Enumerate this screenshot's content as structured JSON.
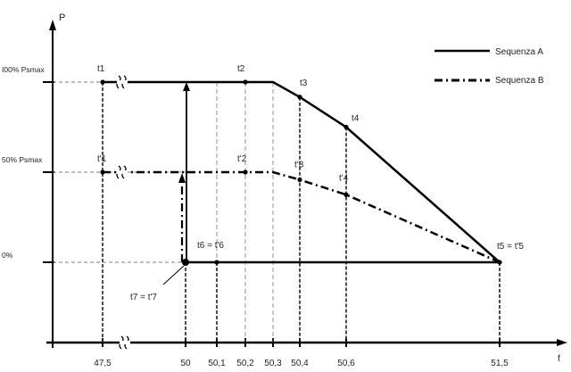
{
  "chart_data": {
    "type": "line",
    "xlabel": "f",
    "ylabel": "P",
    "x_ticks": [
      "47,5",
      "50",
      "50,1",
      "50,2",
      "50,3",
      "50,4",
      "50,6",
      "51,5"
    ],
    "x_values": [
      47.5,
      50,
      50.1,
      50.2,
      50.3,
      50.4,
      50.6,
      51.5
    ],
    "x_axis_break_between": [
      47.5,
      50
    ],
    "y_ticks": [
      {
        "label": "I00% Psmax",
        "value": 100
      },
      {
        "label": "50% Psmax",
        "value": 50
      },
      {
        "label": "0%",
        "value": 0
      }
    ],
    "legend_position": "top-right",
    "series": [
      {
        "name": "Sequenza A",
        "style": "solid",
        "points": [
          [
            47.5,
            100
          ],
          [
            50.2,
            100
          ],
          [
            50.3,
            100
          ],
          [
            50.4,
            91.7
          ],
          [
            50.6,
            75
          ],
          [
            51.5,
            0
          ],
          [
            50.1,
            0
          ],
          [
            50,
            0
          ]
        ]
      },
      {
        "name": "Sequenza B",
        "style": "dash-dot",
        "points": [
          [
            47.5,
            50
          ],
          [
            50.2,
            50
          ],
          [
            50.3,
            50
          ],
          [
            50.4,
            45.8
          ],
          [
            50.6,
            37.5
          ],
          [
            51.5,
            0
          ],
          [
            50.1,
            0
          ],
          [
            50,
            0
          ]
        ]
      }
    ],
    "point_labels": [
      {
        "label": "t1",
        "x": 47.5,
        "y": 100
      },
      {
        "label": "t2",
        "x": 50.2,
        "y": 100
      },
      {
        "label": "t3",
        "x": 50.4,
        "y": 91.7
      },
      {
        "label": "t4",
        "x": 50.6,
        "y": 75
      },
      {
        "label": "t5 = t'5",
        "x": 51.5,
        "y": 0
      },
      {
        "label": "t6 = t'6",
        "x": 50.1,
        "y": 0
      },
      {
        "label": "t7 = t'7",
        "x": 50,
        "y": 0
      },
      {
        "label": "t'1",
        "x": 47.5,
        "y": 50
      },
      {
        "label": "t'2",
        "x": 50.2,
        "y": 50
      },
      {
        "label": "t'3",
        "x": 50.4,
        "y": 45.8
      },
      {
        "label": "t'4",
        "x": 50.6,
        "y": 37.5
      }
    ],
    "colors": {
      "line": "#000000",
      "guides": "#444444"
    }
  }
}
